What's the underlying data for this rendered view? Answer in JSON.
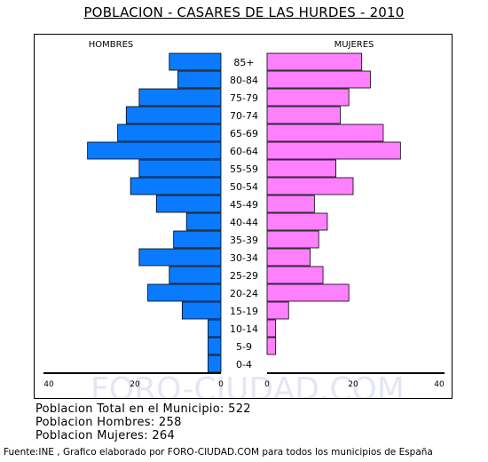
{
  "title": "POBLACION - CASARES DE LAS HURDES - 2010",
  "chart_data": {
    "type": "bar",
    "orientation": "horizontal-pyramid",
    "categories": [
      "85+",
      "80-84",
      "75-79",
      "70-74",
      "65-69",
      "60-64",
      "55-59",
      "50-54",
      "45-49",
      "40-44",
      "35-39",
      "30-34",
      "25-29",
      "20-24",
      "15-19",
      "10-14",
      "5-9",
      "0-4"
    ],
    "series": [
      {
        "name": "HOMBRES",
        "color": "#0a7bff",
        "values": [
          12,
          10,
          19,
          22,
          24,
          31,
          19,
          21,
          15,
          8,
          11,
          19,
          12,
          17,
          9,
          3,
          3,
          3
        ]
      },
      {
        "name": "MUJERES",
        "color": "#ff80ff",
        "values": [
          22,
          24,
          19,
          17,
          27,
          31,
          16,
          20,
          11,
          14,
          12,
          10,
          13,
          19,
          5,
          2,
          2,
          0
        ]
      }
    ],
    "xlim": [
      0,
      40
    ],
    "left_ticks": [
      "40",
      "20",
      "0"
    ],
    "right_ticks": [
      "0",
      "20",
      "40"
    ],
    "watermark": "FORO-CIUDAD.COM"
  },
  "stats": {
    "total": "Poblacion Total en el Municipio: 522",
    "hombres": "Poblacion Hombres: 258",
    "mujeres": "Poblacion Mujeres: 264"
  },
  "footer": "Fuente:INE , Grafico elaborado por FORO-CIUDAD.COM para todos los municipios de España"
}
